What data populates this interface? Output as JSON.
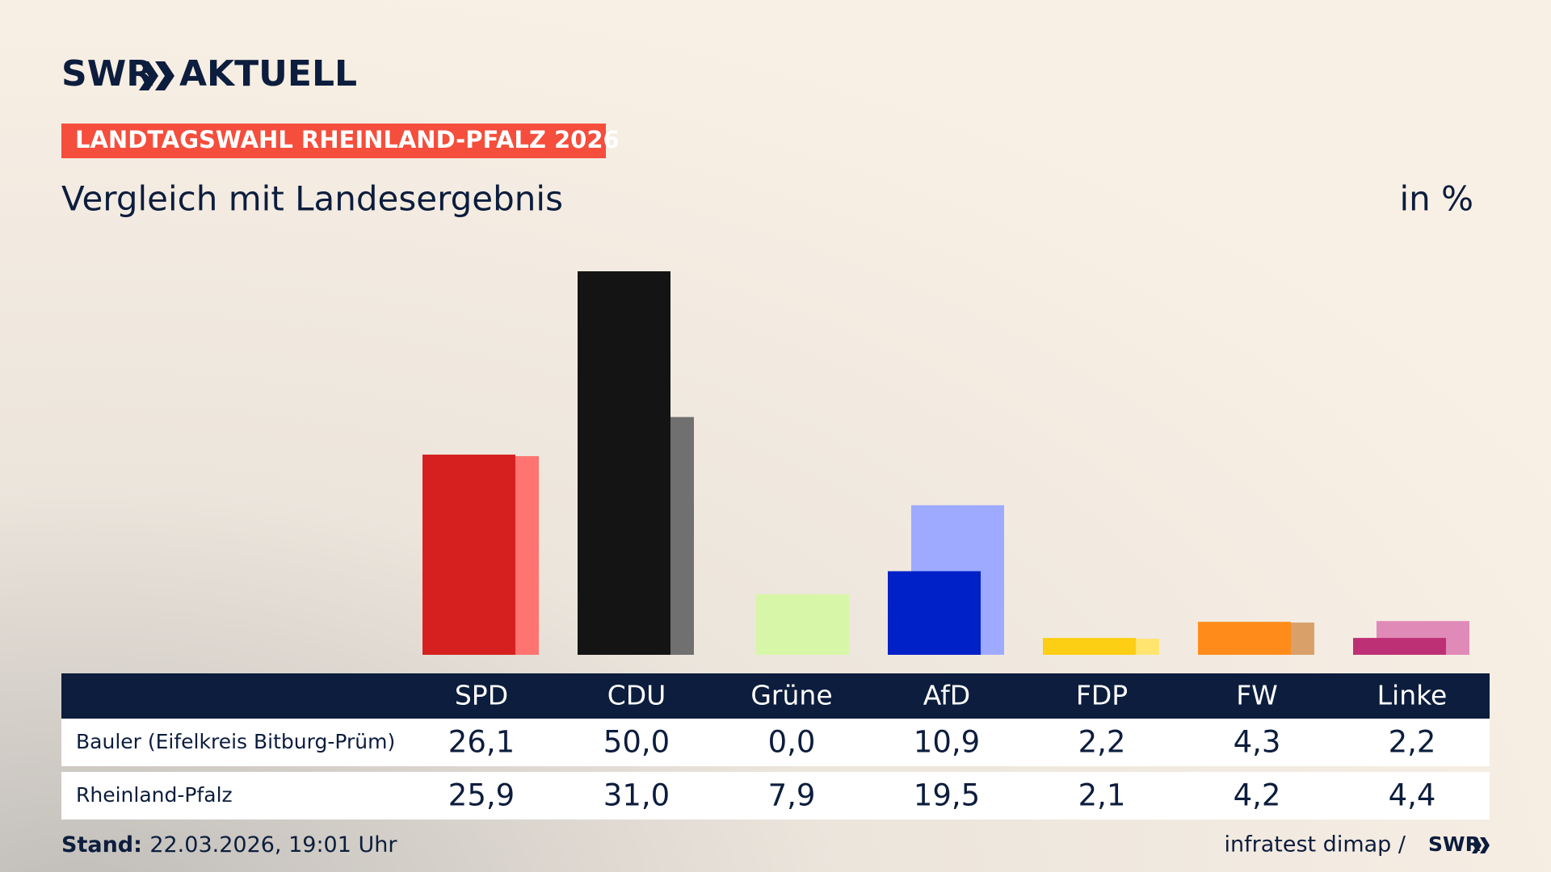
{
  "header": {
    "logo_left": "SWR",
    "logo_right": "AKTUELL"
  },
  "chart_data": {
    "type": "bar",
    "kicker": "LANDTAGSWAHL RHEINLAND-PFALZ 2026",
    "title": "Vergleich mit Landesergebnis",
    "unit": "in %",
    "categories": [
      "SPD",
      "CDU",
      "Grüne",
      "AfD",
      "FDP",
      "FW",
      "Linke"
    ],
    "series": [
      {
        "name": "Bauler (Eifelkreis Bitburg-Prüm)",
        "colors": [
          "#d62020",
          "#141414",
          "#c6ef94",
          "#0021c8",
          "#fcce14",
          "#ff8c1a",
          "#be3075"
        ],
        "values": [
          26.1,
          50.0,
          0.0,
          10.9,
          2.2,
          4.3,
          2.2
        ],
        "value_labels": [
          "26,1",
          "50,0",
          "0,0",
          "10,9",
          "2,2",
          "4,3",
          "2,2"
        ]
      },
      {
        "name": "Rheinland-Pfalz",
        "colors": [
          "#ff7470",
          "#707070",
          "#d8f6a8",
          "#9daaff",
          "#ffe470",
          "#d9a06a",
          "#e08ab8"
        ],
        "values": [
          25.9,
          31.0,
          7.9,
          19.5,
          2.1,
          4.2,
          4.4
        ],
        "value_labels": [
          "25,9",
          "31,0",
          "7,9",
          "19,5",
          "2,1",
          "4,2",
          "4,4"
        ]
      }
    ]
  },
  "footer": {
    "stand_label": "Stand:",
    "stand_value": "22.03.2026, 19:01 Uhr",
    "source": "infratest dimap /",
    "source_logo": "SWR"
  }
}
